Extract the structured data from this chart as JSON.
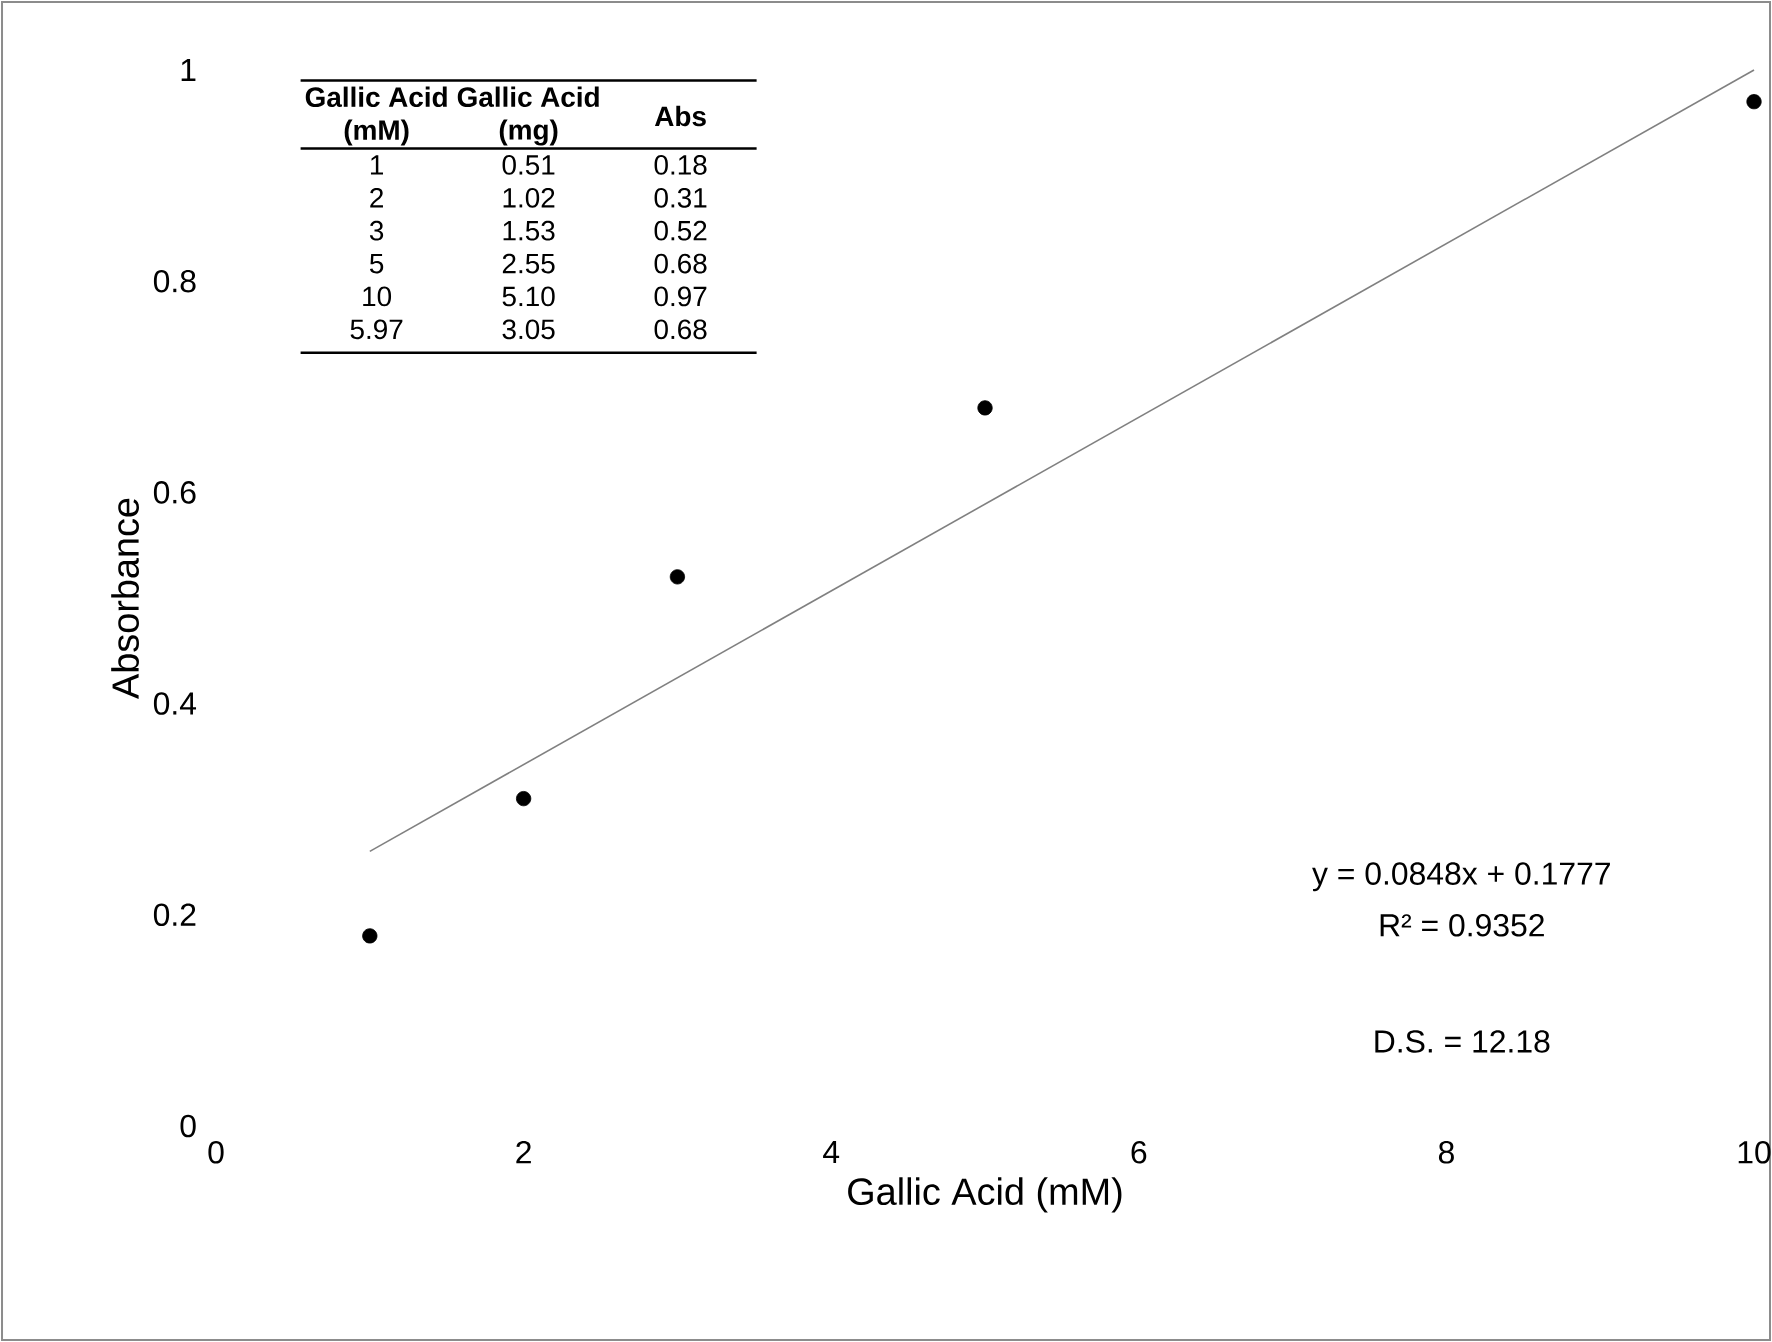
{
  "chart_data": {
    "type": "scatter",
    "xlabel": "Gallic Acid (mM)",
    "ylabel": "Absorbance",
    "xlim": [
      0,
      10
    ],
    "ylim": [
      0,
      1
    ],
    "xticks": [
      0,
      2,
      4,
      6,
      8,
      10
    ],
    "yticks": [
      0,
      0.2,
      0.4,
      0.6,
      0.8,
      1
    ],
    "marker": "circle",
    "series": [
      {
        "color": "#000000",
        "x": [
          1,
          2,
          3,
          5,
          10
        ],
        "values": [
          0.18,
          0.31,
          0.52,
          0.68,
          0.97
        ]
      },
      {
        "type": "line",
        "color": "#808080",
        "marker": "none",
        "x": [
          1,
          10
        ],
        "values": [
          0.26,
          1.0
        ]
      }
    ],
    "annotations": [
      "Gallic Acid (mM)",
      "Gallic Acid (mg)",
      "Abs",
      "1",
      "0.51",
      "0.18",
      "2",
      "1.02",
      "0.31",
      "3",
      "1.53",
      "0.52",
      "5",
      "2.55",
      "0.68",
      "10",
      "5.10",
      "0.97",
      "5.97",
      "3.05",
      "0.68",
      "y = 0.0848x + 0.1777",
      "R² = 0.9352",
      "D.S. = 12.18"
    ]
  }
}
